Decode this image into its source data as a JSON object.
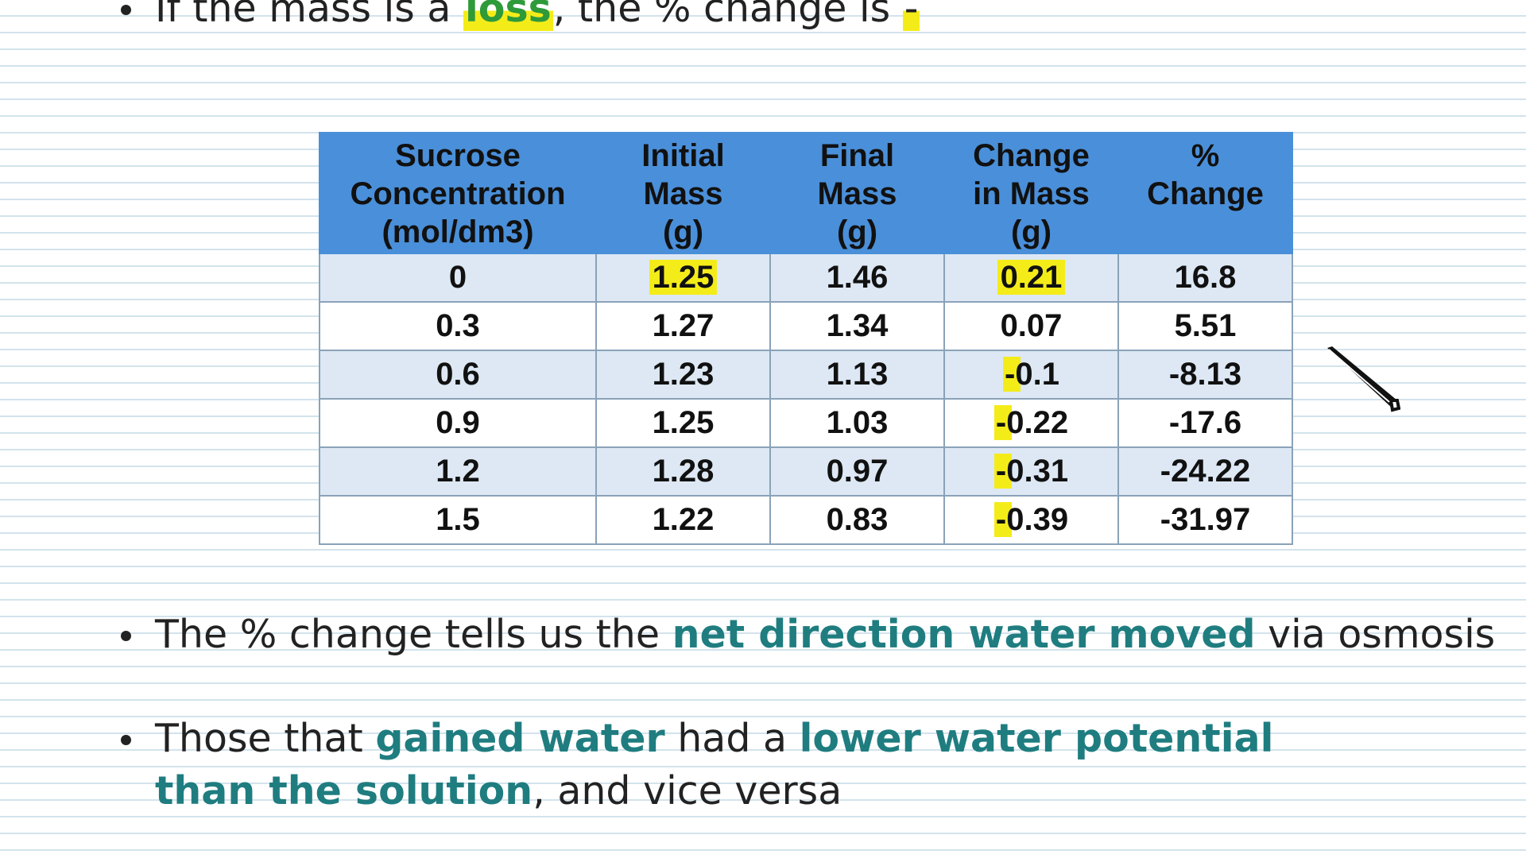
{
  "bullets": {
    "b0": {
      "prefix": "If the mass is a ",
      "emph": "loss",
      "middle": ", the % change is ",
      "sign": "-"
    },
    "b1": {
      "prefix": "The % change tells us the ",
      "emph": "net direction water moved",
      "suffix": " via osmosis"
    },
    "b2": {
      "prefix": "Those that ",
      "emph1": "gained water",
      "middle": " had a ",
      "emph2": "lower water potential than the solution",
      "suffix": ", and vice versa"
    }
  },
  "table": {
    "headers": [
      [
        "Sucrose",
        "Concentration",
        "(mol/dm3)"
      ],
      [
        "Initial",
        "Mass",
        "(g)"
      ],
      [
        "Final",
        "Mass",
        "(g)"
      ],
      [
        "Change",
        "in Mass",
        "(g)"
      ],
      [
        "%",
        "Change",
        ""
      ]
    ],
    "rows": [
      [
        "0",
        "1.25",
        "1.46",
        "0.21",
        "16.8"
      ],
      [
        "0.3",
        "1.27",
        "1.34",
        "0.07",
        "5.51"
      ],
      [
        "0.6",
        "1.23",
        "1.13",
        "-0.1",
        "-8.13"
      ],
      [
        "0.9",
        "1.25",
        "1.03",
        "-0.22",
        "-17.6"
      ],
      [
        "1.2",
        "1.28",
        "0.97",
        "-0.31",
        "-24.22"
      ],
      [
        "1.5",
        "1.22",
        "0.83",
        "-0.39",
        "-31.97"
      ]
    ]
  },
  "colors": {
    "header_bg": "#4a8fd9",
    "odd_row_bg": "#dde8f4",
    "emphasis_teal": "#1f7d80",
    "emphasis_green": "#2e9a3a",
    "highlighter": "#f4ec19",
    "ruled_line": "#d3e3ec"
  },
  "icons": {
    "pointer": "pen-cursor-icon"
  }
}
